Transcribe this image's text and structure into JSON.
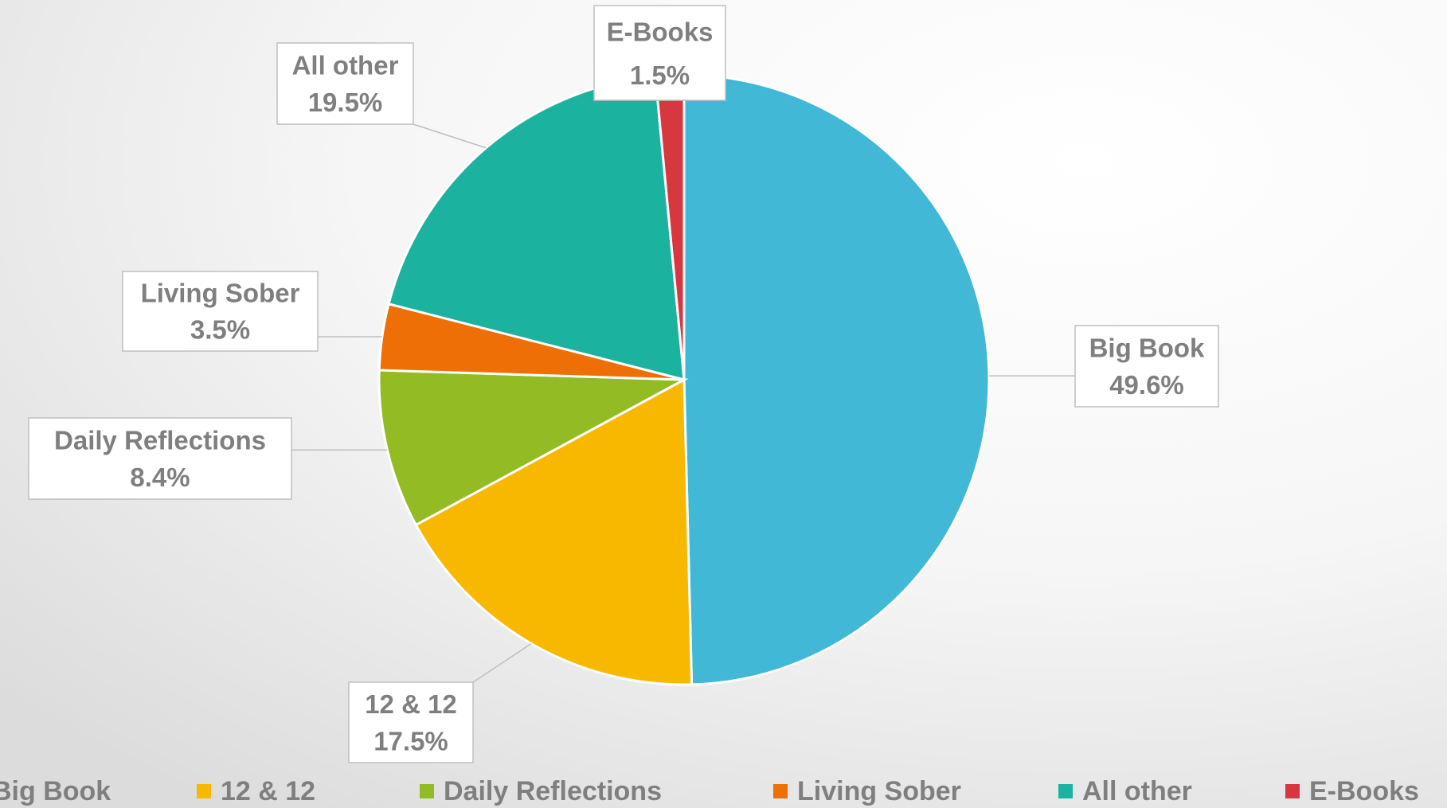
{
  "chart_data": {
    "type": "pie",
    "categories": [
      "Big Book",
      "12 & 12",
      "Daily Reflections",
      "Living Sober",
      "All other",
      "E-Books"
    ],
    "values": [
      49.6,
      17.5,
      8.4,
      3.5,
      19.5,
      1.5
    ],
    "value_labels": [
      "49.6%",
      "17.5%",
      "8.4%",
      "3.5%",
      "19.5%",
      "1.5%"
    ],
    "colors": [
      "#41b8d5",
      "#f9b800",
      "#93bb23",
      "#ee6f06",
      "#1bb3a0",
      "#d7373f"
    ],
    "legend": "bottom"
  }
}
